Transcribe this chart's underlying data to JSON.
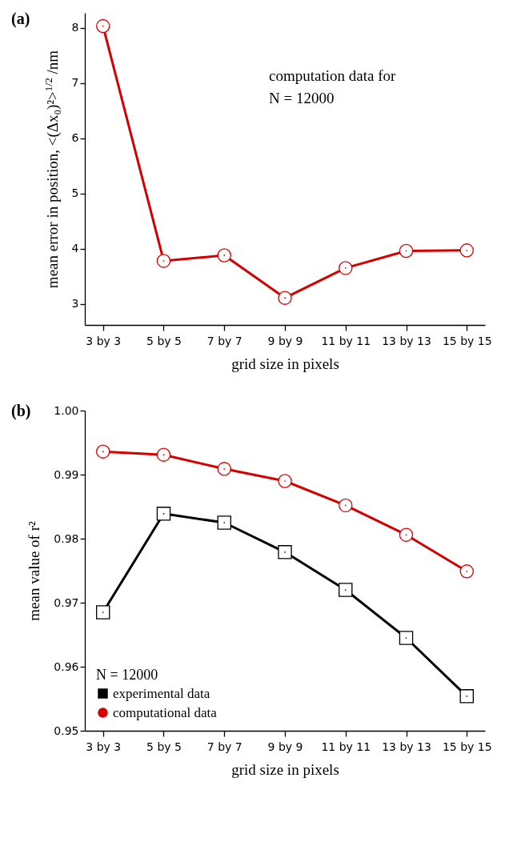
{
  "chart_data": [
    {
      "type": "line",
      "title": "(a)",
      "xlabel": "grid size in pixels",
      "ylabel": "mean error in position, <(Δx₀)²>$^{1/2}$ /nm",
      "categories": [
        "3 by 3",
        "5 by 5",
        "7 by 7",
        "9 by 9",
        "11 by 11",
        "13 by 13",
        "15 by 15"
      ],
      "series": [
        {
          "color": "#d40000",
          "marker": "circle",
          "values": [
            8.03,
            3.78,
            3.88,
            3.11,
            3.65,
            3.96,
            3.97
          ]
        }
      ],
      "ylim": [
        2.62,
        8.27
      ],
      "yticks": [
        3,
        4,
        5,
        6,
        7,
        8
      ],
      "annotations": [
        "computation data for\nN = 12000"
      ],
      "grid": false,
      "legend": false
    },
    {
      "type": "line",
      "title": "(b)",
      "xlabel": "grid size in pixels",
      "ylabel": "mean value of r²",
      "categories": [
        "3 by 3",
        "5 by 5",
        "7 by 7",
        "9 by 9",
        "11 by 11",
        "13 by 13",
        "15 by 15"
      ],
      "series": [
        {
          "name": "experimental data",
          "color": "#000000",
          "marker": "square",
          "values": [
            0.9685,
            0.9839,
            0.9825,
            0.9779,
            0.972,
            0.9645,
            0.9554
          ]
        },
        {
          "name": "computational data",
          "color": "#d40000",
          "marker": "circle",
          "values": [
            0.9936,
            0.9931,
            0.9909,
            0.989,
            0.9852,
            0.9806,
            0.9749
          ]
        }
      ],
      "ylim": [
        0.95,
        1.0
      ],
      "yticks": [
        0.95,
        0.96,
        0.97,
        0.98,
        0.99,
        {
          "value": 1.0,
          "label": "1.00"
        }
      ],
      "legend_title": "N = 12000",
      "legend": "bottom left",
      "grid": false
    }
  ]
}
